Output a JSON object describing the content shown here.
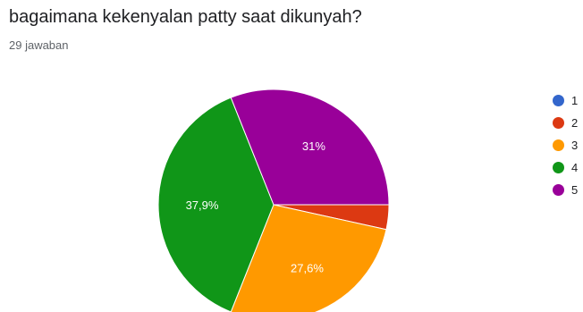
{
  "question": {
    "title": "bagaimana kekenyalan patty saat dikunyah?",
    "response_count": "29 jawaban"
  },
  "chart_data": {
    "type": "pie",
    "title": "bagaimana kekenyalan patty saat dikunyah?",
    "categories": [
      "1",
      "2",
      "3",
      "4",
      "5"
    ],
    "values": [
      0,
      1,
      8,
      11,
      9
    ],
    "labels": [
      "",
      "",
      "27,6%",
      "37,9%",
      "31%"
    ],
    "colors": [
      "#3366cc",
      "#dc3912",
      "#ff9900",
      "#109618",
      "#990099"
    ],
    "legend_position": "right"
  }
}
